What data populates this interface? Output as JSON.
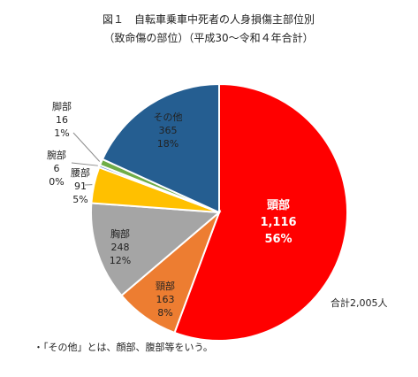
{
  "chart_data": {
    "type": "pie",
    "title": "図１　自転車乗車中死者の人身損傷主部位別",
    "subtitle": "（致命傷の部位）（平成30～令和４年合計）",
    "total_label": "合計2,005人",
    "note": "・「その他」とは、顔部、腹部等をいう。",
    "slices": [
      {
        "name": "頭部",
        "value": 1116,
        "value_label": "1,116",
        "percent": "56%",
        "color": "#ff0000"
      },
      {
        "name": "頸部",
        "value": 163,
        "value_label": "163",
        "percent": "8%",
        "color": "#ed7d31"
      },
      {
        "name": "胸部",
        "value": 248,
        "value_label": "248",
        "percent": "12%",
        "color": "#a5a5a5"
      },
      {
        "name": "腰部",
        "value": 91,
        "value_label": "91",
        "percent": "5%",
        "color": "#ffc000"
      },
      {
        "name": "腕部",
        "value": 6,
        "value_label": "6",
        "percent": "0%",
        "color": "#4472c4"
      },
      {
        "name": "脚部",
        "value": 16,
        "value_label": "16",
        "percent": "1%",
        "color": "#70ad47"
      },
      {
        "name": "その他",
        "value": 365,
        "value_label": "365",
        "percent": "18%",
        "color": "#255e91"
      }
    ]
  }
}
